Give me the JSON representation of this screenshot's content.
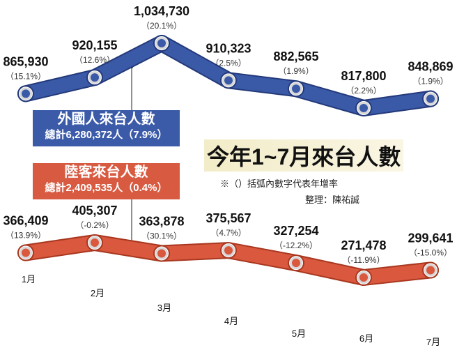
{
  "chart_data": {
    "type": "line",
    "title": "今年1~7月來台人數",
    "note": "※（）括弧內數字代表年增率",
    "credit": "整理：陳祐誠",
    "categories": [
      "1月",
      "2月",
      "3月",
      "4月",
      "5月",
      "6月",
      "7月"
    ],
    "series": [
      {
        "name": "外國人來台人數",
        "total_label": "總計6,280,372人（7.9%）",
        "color": "#3a5aa8",
        "values": [
          865930,
          920155,
          1034730,
          910323,
          882565,
          817800,
          848869
        ],
        "value_labels": [
          "865,930",
          "920,155",
          "1,034,730",
          "910,323",
          "882,565",
          "817,800",
          "848,869"
        ],
        "growth_labels": [
          "（15.1%）",
          "（12.6%）",
          "（20.1%）",
          "（2.5%）",
          "（1.9%）",
          "（2.2%）",
          "（1.9%）"
        ]
      },
      {
        "name": "陸客來台人數",
        "total_label": "總計2,409,535人（0.4%）",
        "color": "#d9583e",
        "values": [
          366409,
          405307,
          363878,
          375567,
          327254,
          271478,
          299641
        ],
        "value_labels": [
          "366,409",
          "405,307",
          "363,878",
          "375,567",
          "327,254",
          "271,478",
          "299,641"
        ],
        "growth_labels": [
          "（13.9%）",
          "（-0.2%）",
          "（30.1%）",
          "（4.7%）",
          "（-12.2%）",
          "（-11.9%）",
          "（-15.0%）"
        ]
      }
    ],
    "grid": false
  }
}
